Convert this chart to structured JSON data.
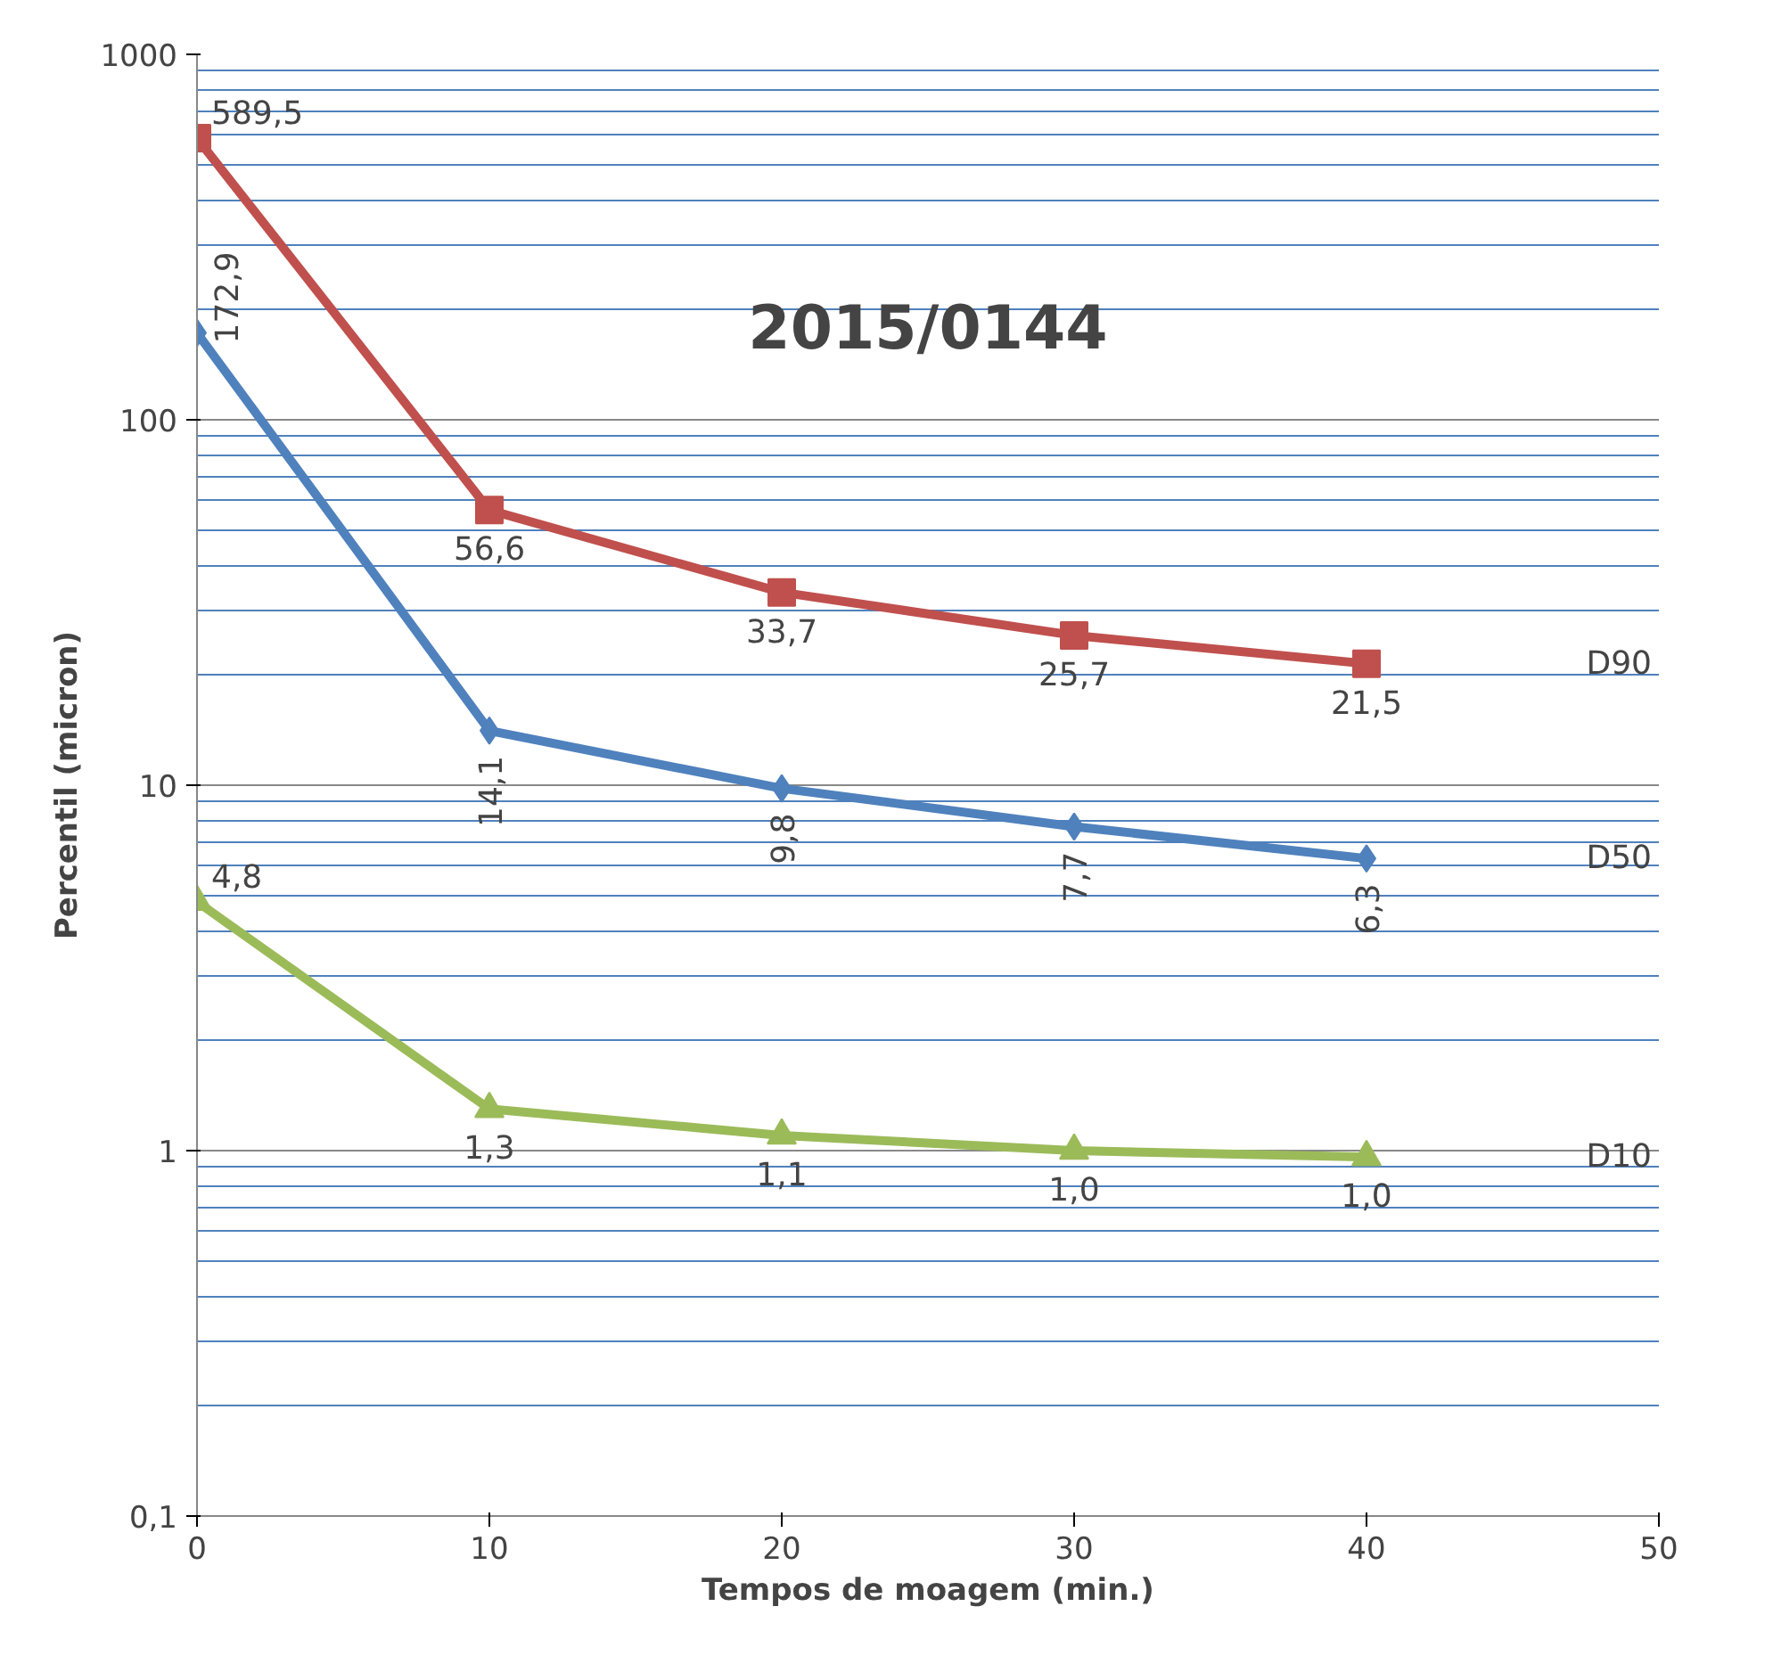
{
  "chart_data": {
    "type": "line",
    "title": "2015/0144",
    "xlabel": "Tempos de moagem (min.)",
    "ylabel": "Percentil (micron)",
    "x": [
      0,
      10,
      20,
      30,
      40
    ],
    "series": [
      {
        "name": "D90",
        "color": "#c0504d",
        "marker": "square",
        "values": [
          589.5,
          56.6,
          33.7,
          25.7,
          21.5
        ],
        "value_labels": [
          "589,5",
          "56,6",
          "33,7",
          "25,7",
          "21,5"
        ]
      },
      {
        "name": "D50",
        "color": "#4f81bd",
        "marker": "diamond",
        "values": [
          172.9,
          14.1,
          9.8,
          7.7,
          6.3
        ],
        "value_labels": [
          "172,9",
          "14,1",
          "9,8",
          "7,7",
          "6,3"
        ]
      },
      {
        "name": "D10",
        "color": "#9bbb59",
        "marker": "triangle",
        "values": [
          4.8,
          1.3,
          1.1,
          1.0,
          0.96
        ],
        "value_labels": [
          "4,8",
          "1,3",
          "1,1",
          "1,0",
          "1,0"
        ]
      }
    ],
    "log": "y",
    "xlim": [
      0,
      50
    ],
    "ylim": [
      0.1,
      1000
    ],
    "xticks": [
      0,
      10,
      20,
      30,
      40,
      50
    ],
    "yticks": [
      {
        "value": 0.1,
        "label": "0,1"
      },
      {
        "value": 0.2,
        "label": null
      },
      {
        "value": 0.3,
        "label": null
      },
      {
        "value": 0.4,
        "label": null
      },
      {
        "value": 0.5,
        "label": null
      },
      {
        "value": 0.6,
        "label": null
      },
      {
        "value": 0.7,
        "label": null
      },
      {
        "value": 0.8,
        "label": null
      },
      {
        "value": 0.9,
        "label": null
      },
      1,
      {
        "value": 2,
        "label": null
      },
      {
        "value": 3,
        "label": null
      },
      {
        "value": 4,
        "label": null
      },
      {
        "value": 5,
        "label": null
      },
      {
        "value": 6,
        "label": null
      },
      {
        "value": 7,
        "label": null
      },
      {
        "value": 8,
        "label": null
      },
      {
        "value": 9,
        "label": null
      },
      10,
      {
        "value": 20,
        "label": null
      },
      {
        "value": 30,
        "label": null
      },
      {
        "value": 40,
        "label": null
      },
      {
        "value": 50,
        "label": null
      },
      {
        "value": 60,
        "label": null
      },
      {
        "value": 70,
        "label": null
      },
      {
        "value": 80,
        "label": null
      },
      {
        "value": 90,
        "label": null
      },
      100,
      {
        "value": 200,
        "label": null
      },
      {
        "value": 300,
        "label": null
      },
      {
        "value": 400,
        "label": null
      },
      {
        "value": 500,
        "label": null
      },
      {
        "value": 600,
        "label": null
      },
      {
        "value": 700,
        "label": null
      },
      {
        "value": 800,
        "label": null
      },
      {
        "value": 900,
        "label": null
      },
      1000
    ],
    "grid": "y",
    "legend": false,
    "line_style": "solid"
  }
}
